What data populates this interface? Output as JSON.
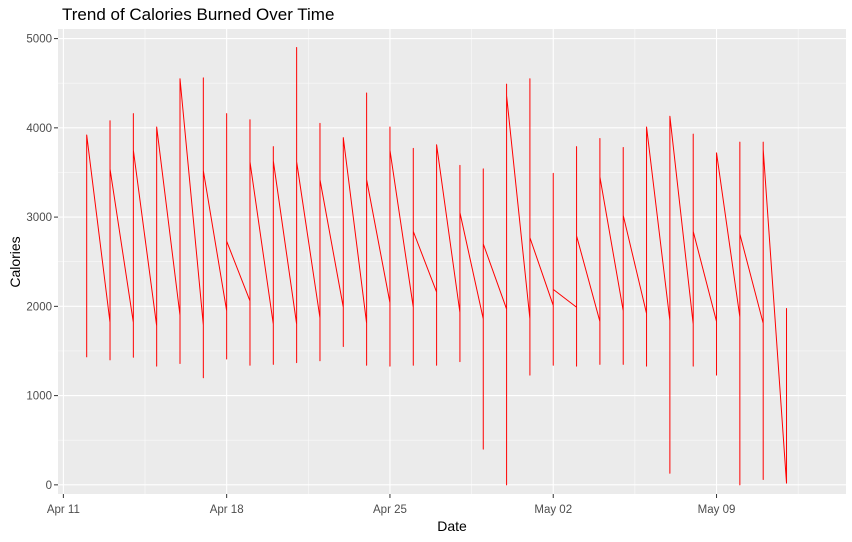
{
  "chart_data": {
    "type": "line",
    "title": "Trend of Calories Burned Over Time",
    "xlabel": "Date",
    "ylabel": "Calories",
    "x_ticks": [
      "Apr 11",
      "Apr 18",
      "Apr 25",
      "May 02",
      "May 09"
    ],
    "y_ticks": [
      "0",
      "1000",
      "2000",
      "3000",
      "4000",
      "5000"
    ],
    "xlim": [
      "2016-04-11",
      "2016-05-14"
    ],
    "ylim": [
      0,
      5000
    ],
    "grid": true,
    "series": [
      {
        "color": "#ff0000",
        "points": [
          [
            "2016-04-12",
            1430
          ],
          [
            "2016-04-12",
            3920
          ],
          [
            "2016-04-13",
            1820
          ],
          [
            "2016-04-13",
            1400
          ],
          [
            "2016-04-13",
            4080
          ],
          [
            "2016-04-13",
            3540
          ],
          [
            "2016-04-14",
            1820
          ],
          [
            "2016-04-14",
            1430
          ],
          [
            "2016-04-14",
            4160
          ],
          [
            "2016-04-14",
            3750
          ],
          [
            "2016-04-15",
            1780
          ],
          [
            "2016-04-15",
            1330
          ],
          [
            "2016-04-15",
            4010
          ],
          [
            "2016-04-16",
            1900
          ],
          [
            "2016-04-16",
            1360
          ],
          [
            "2016-04-16",
            4550
          ],
          [
            "2016-04-17",
            1790
          ],
          [
            "2016-04-17",
            1200
          ],
          [
            "2016-04-17",
            4560
          ],
          [
            "2016-04-17",
            3520
          ],
          [
            "2016-04-18",
            1950
          ],
          [
            "2016-04-18",
            1410
          ],
          [
            "2016-04-18",
            4160
          ],
          [
            "2016-04-18",
            2730
          ],
          [
            "2016-04-19",
            2060
          ],
          [
            "2016-04-19",
            1340
          ],
          [
            "2016-04-19",
            4090
          ],
          [
            "2016-04-19",
            3620
          ],
          [
            "2016-04-20",
            1800
          ],
          [
            "2016-04-20",
            1350
          ],
          [
            "2016-04-20",
            3790
          ],
          [
            "2016-04-20",
            3630
          ],
          [
            "2016-04-21",
            1800
          ],
          [
            "2016-04-21",
            1370
          ],
          [
            "2016-04-21",
            4900
          ],
          [
            "2016-04-21",
            3620
          ],
          [
            "2016-04-22",
            1870
          ],
          [
            "2016-04-22",
            1390
          ],
          [
            "2016-04-22",
            4050
          ],
          [
            "2016-04-22",
            3420
          ],
          [
            "2016-04-23",
            1990
          ],
          [
            "2016-04-23",
            1550
          ],
          [
            "2016-04-23",
            3890
          ],
          [
            "2016-04-24",
            1810
          ],
          [
            "2016-04-24",
            1340
          ],
          [
            "2016-04-24",
            4390
          ],
          [
            "2016-04-24",
            3420
          ],
          [
            "2016-04-25",
            2040
          ],
          [
            "2016-04-25",
            1330
          ],
          [
            "2016-04-25",
            4010
          ],
          [
            "2016-04-25",
            3750
          ],
          [
            "2016-04-26",
            1990
          ],
          [
            "2016-04-26",
            1340
          ],
          [
            "2016-04-26",
            3770
          ],
          [
            "2016-04-26",
            2840
          ],
          [
            "2016-04-27",
            2160
          ],
          [
            "2016-04-27",
            1340
          ],
          [
            "2016-04-27",
            3810
          ],
          [
            "2016-04-28",
            1930
          ],
          [
            "2016-04-28",
            1380
          ],
          [
            "2016-04-28",
            3580
          ],
          [
            "2016-04-28",
            3050
          ],
          [
            "2016-04-29",
            1860
          ],
          [
            "2016-04-29",
            400
          ],
          [
            "2016-04-29",
            3540
          ],
          [
            "2016-04-29",
            2700
          ],
          [
            "2016-04-30",
            1970
          ],
          [
            "2016-04-30",
            0
          ],
          [
            "2016-04-30",
            4490
          ],
          [
            "2016-04-30",
            4360
          ],
          [
            "2016-05-01",
            1860
          ],
          [
            "2016-05-01",
            1230
          ],
          [
            "2016-05-01",
            4550
          ],
          [
            "2016-05-01",
            2770
          ],
          [
            "2016-05-02",
            2010
          ],
          [
            "2016-05-02",
            1340
          ],
          [
            "2016-05-02",
            3490
          ],
          [
            "2016-05-02",
            2190
          ],
          [
            "2016-05-03",
            1990
          ],
          [
            "2016-05-03",
            1330
          ],
          [
            "2016-05-03",
            3790
          ],
          [
            "2016-05-03",
            2790
          ],
          [
            "2016-05-04",
            1830
          ],
          [
            "2016-05-04",
            1350
          ],
          [
            "2016-05-04",
            3880
          ],
          [
            "2016-05-04",
            3450
          ],
          [
            "2016-05-05",
            1950
          ],
          [
            "2016-05-05",
            1350
          ],
          [
            "2016-05-05",
            3780
          ],
          [
            "2016-05-05",
            3020
          ],
          [
            "2016-05-06",
            1920
          ],
          [
            "2016-05-06",
            1330
          ],
          [
            "2016-05-06",
            4010
          ],
          [
            "2016-05-07",
            1840
          ],
          [
            "2016-05-07",
            130
          ],
          [
            "2016-05-07",
            4130
          ],
          [
            "2016-05-08",
            1800
          ],
          [
            "2016-05-08",
            1330
          ],
          [
            "2016-05-08",
            3930
          ],
          [
            "2016-05-08",
            2840
          ],
          [
            "2016-05-09",
            1830
          ],
          [
            "2016-05-09",
            1230
          ],
          [
            "2016-05-09",
            3720
          ],
          [
            "2016-05-10",
            1880
          ],
          [
            "2016-05-10",
            0
          ],
          [
            "2016-05-10",
            3840
          ],
          [
            "2016-05-10",
            2810
          ],
          [
            "2016-05-11",
            1810
          ],
          [
            "2016-05-11",
            60
          ],
          [
            "2016-05-11",
            3840
          ],
          [
            "2016-05-11",
            3760
          ],
          [
            "2016-05-12",
            20
          ],
          [
            "2016-05-12",
            1980
          ]
        ]
      }
    ]
  }
}
